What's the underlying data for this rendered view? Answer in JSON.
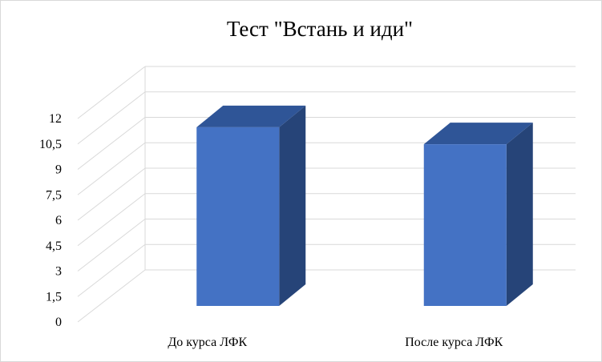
{
  "chart_data": {
    "type": "bar",
    "title": "Тест \"Встань  и иди\"",
    "categories": [
      "До курса ЛФК",
      "После курса ЛФК"
    ],
    "values": [
      10.5,
      9.5
    ],
    "y_ticks": [
      "0",
      "1,5",
      "3",
      "4,5",
      "6",
      "7,5",
      "9",
      "10,5",
      "12"
    ],
    "ylim": [
      0,
      12
    ],
    "grid": true,
    "legend": "none",
    "colors": {
      "bar_front": "#4472c4",
      "bar_top": "#2f5597",
      "bar_side": "#264478",
      "grid": "#d9d9d9"
    }
  }
}
